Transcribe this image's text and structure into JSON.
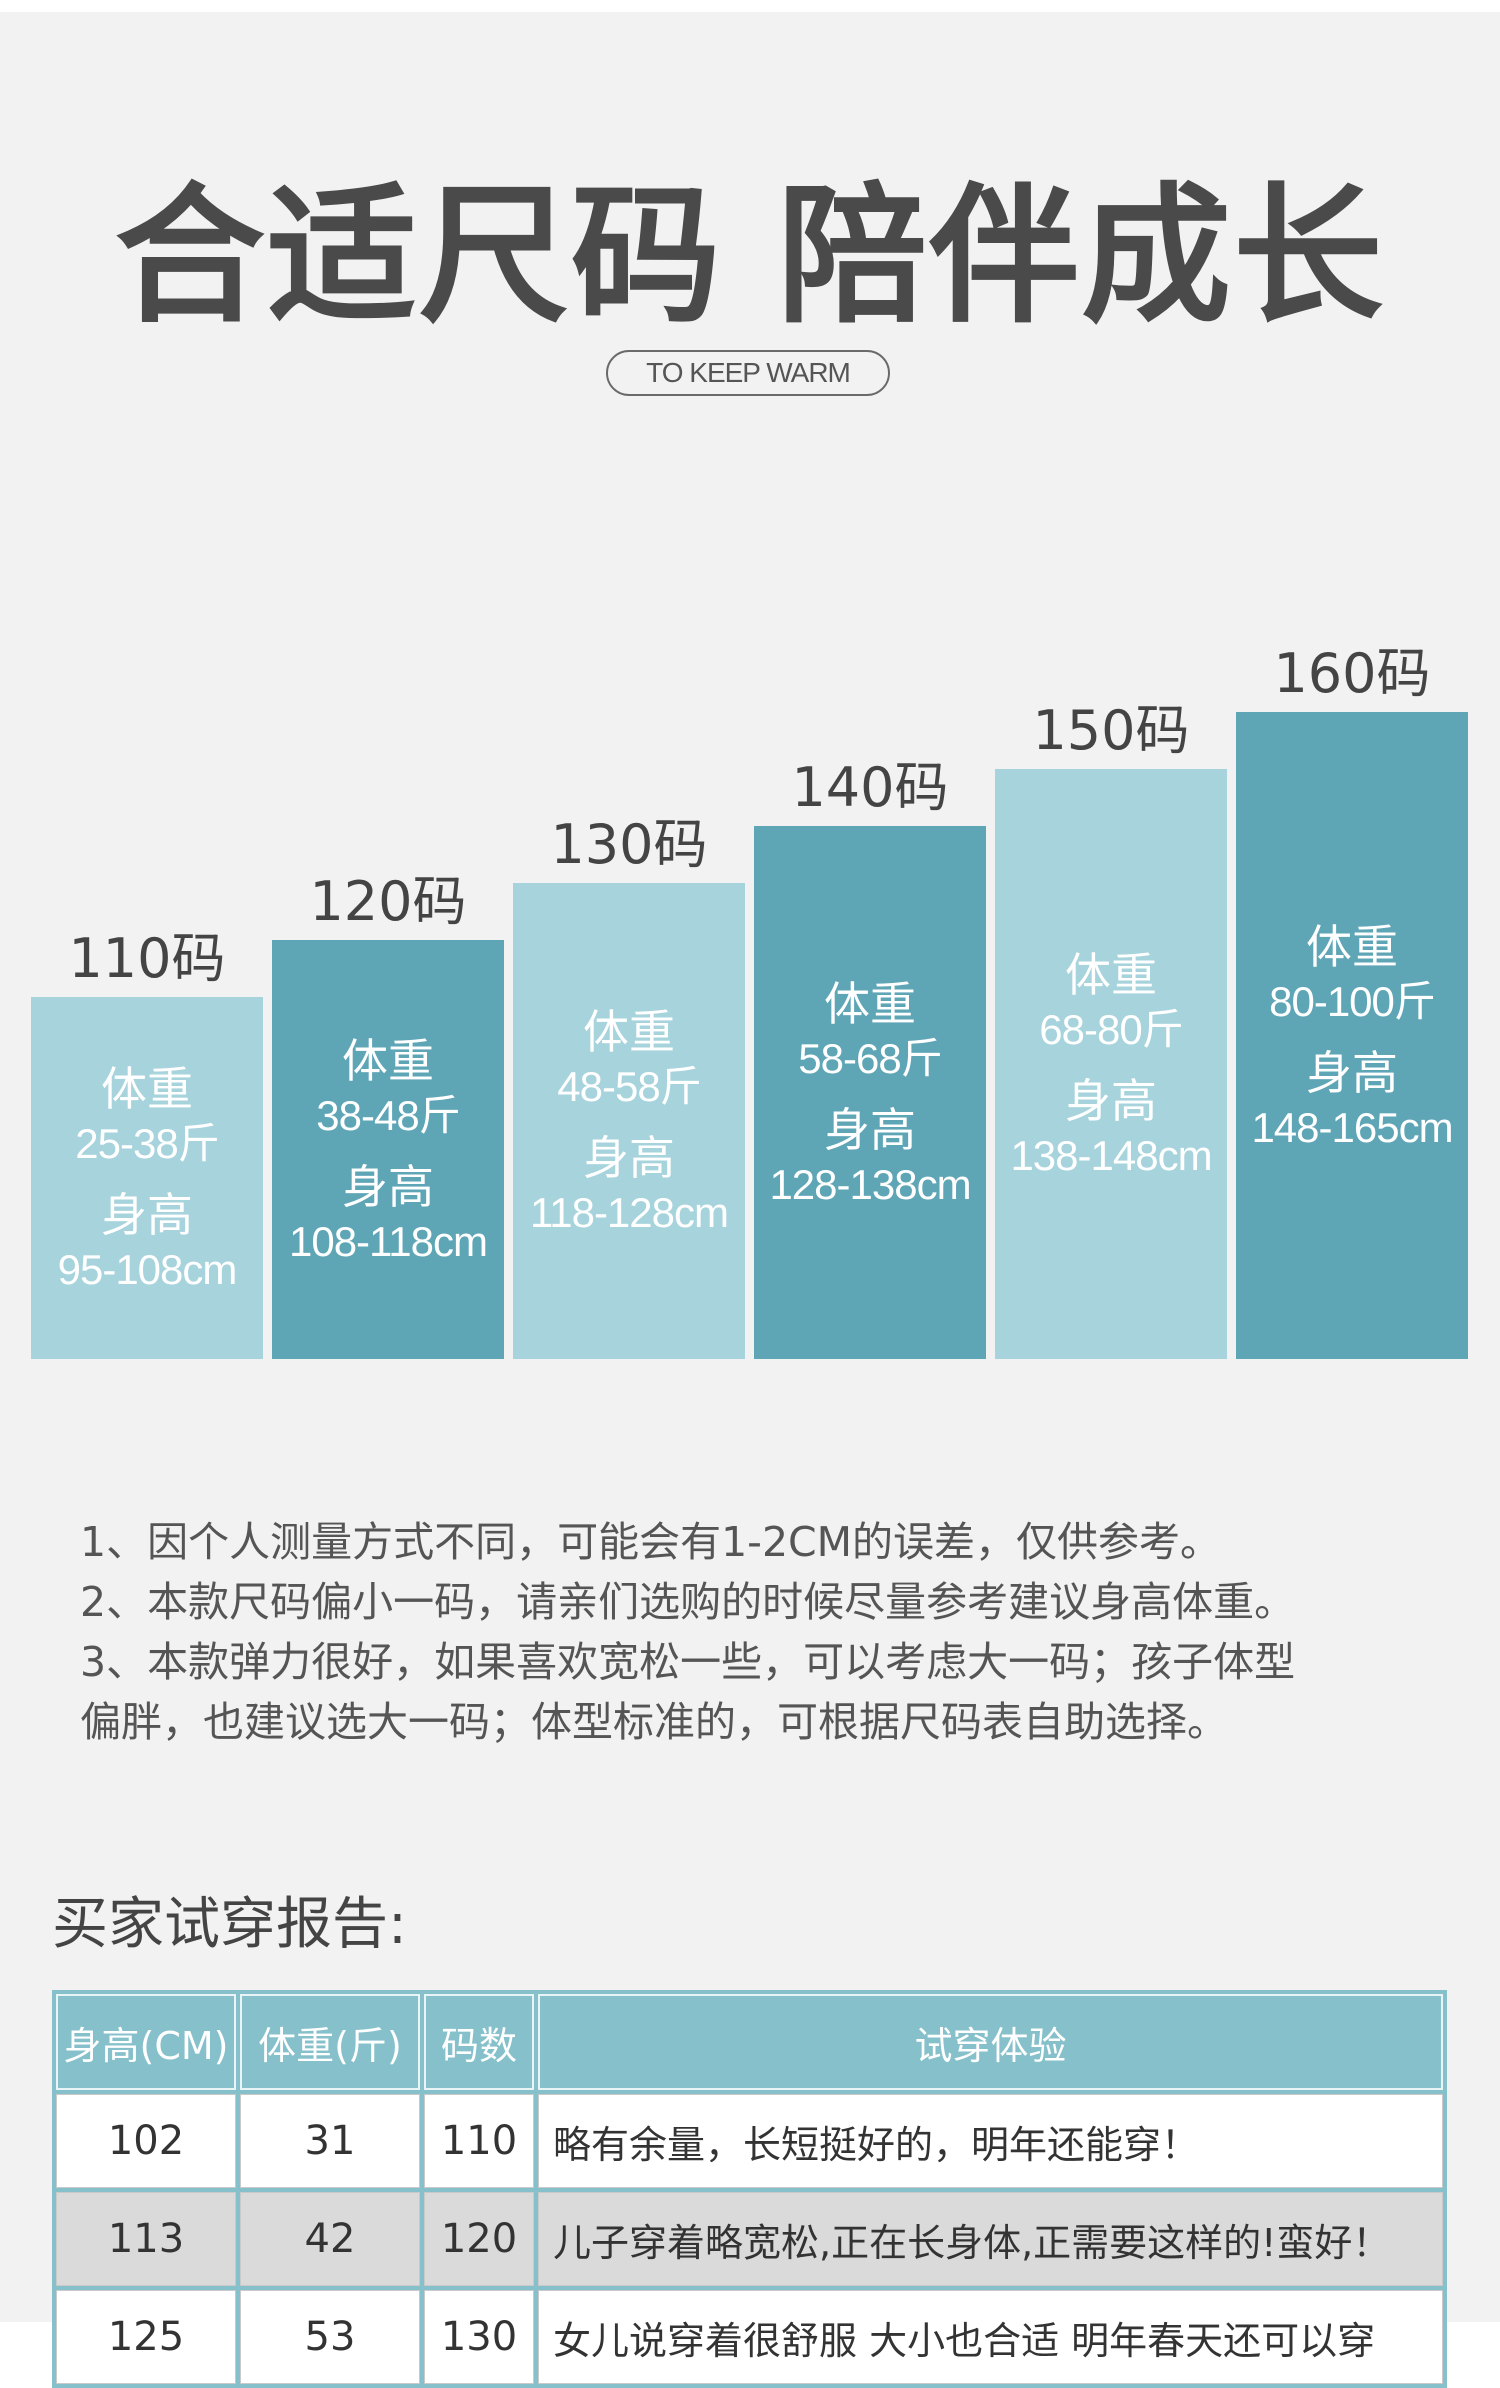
{
  "header": {
    "title": "合适尺码 陪伴成长",
    "subtitle": "TO KEEP WARM"
  },
  "chart_data": {
    "type": "bar",
    "categories": [
      "110码",
      "120码",
      "130码",
      "140码",
      "150码",
      "160码"
    ],
    "series": [
      {
        "values": [
          1,
          2,
          3,
          4,
          5,
          6
        ]
      }
    ],
    "bars": [
      {
        "size": "110码",
        "weight_label": "体重",
        "weight": "25-38斤",
        "height_label": "身高",
        "height": "95-108cm",
        "color": "#a6d3dc"
      },
      {
        "size": "120码",
        "weight_label": "体重",
        "weight": "38-48斤",
        "height_label": "身高",
        "height": "108-118cm",
        "color": "#5ea5b6"
      },
      {
        "size": "130码",
        "weight_label": "体重",
        "weight": "48-58斤",
        "height_label": "身高",
        "height": "118-128cm",
        "color": "#a6d3dc"
      },
      {
        "size": "140码",
        "weight_label": "体重",
        "weight": "58-68斤",
        "height_label": "身高",
        "height": "128-138cm",
        "color": "#5ea5b6"
      },
      {
        "size": "150码",
        "weight_label": "体重",
        "weight": "68-80斤",
        "height_label": "身高",
        "height": "138-148cm",
        "color": "#a6d3dc"
      },
      {
        "size": "160码",
        "weight_label": "体重",
        "weight": "80-100斤",
        "height_label": "身高",
        "height": "148-165cm",
        "color": "#5ea5b6"
      }
    ]
  },
  "notes": [
    "1、因个人测量方式不同，可能会有1-2CM的误差，仅供参考。",
    "2、本款尺码偏小一码，请亲们选购的时候尽量参考建议身高体重。",
    "3、本款弹力很好，如果喜欢宽松一些，可以考虑大一码；孩子体型",
    "偏胖，也建议选大一码；体型标准的，可根据尺码表自助选择。"
  ],
  "report": {
    "title": "买家试穿报告:",
    "headers": [
      "身高(CM)",
      "体重(斤)",
      "码数",
      "试穿体验"
    ],
    "rows": [
      [
        "102",
        "31",
        "110",
        "略有余量，长短挺好的，明年还能穿！"
      ],
      [
        "113",
        "42",
        "120",
        "儿子穿着略宽松,正在长身体,正需要这样的!蛮好！"
      ],
      [
        "125",
        "53",
        "130",
        "女儿说穿着很舒服 大小也合适 明年春天还可以穿"
      ]
    ]
  }
}
